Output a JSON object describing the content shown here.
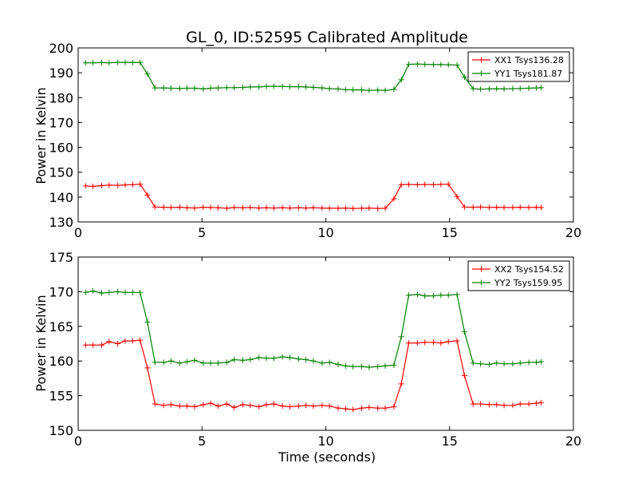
{
  "chart_data": [
    {
      "type": "line",
      "title": "GL_0, ID:52595 Calibrated Amplitude",
      "xlabel": "",
      "ylabel": "Power in Kelvin",
      "xlim": [
        0,
        20
      ],
      "ylim": [
        130,
        200
      ],
      "xticks": [
        "0",
        "5",
        "10",
        "15",
        "20"
      ],
      "yticks": [
        "130",
        "140",
        "150",
        "160",
        "170",
        "180",
        "190",
        "200"
      ],
      "grid": false,
      "legend_position": "top-right",
      "x": [
        0.3,
        0.6,
        0.95,
        1.25,
        1.6,
        1.9,
        2.2,
        2.5,
        2.8,
        3.1,
        3.45,
        3.75,
        4.1,
        4.4,
        4.7,
        5.05,
        5.35,
        5.65,
        6.0,
        6.3,
        6.65,
        6.95,
        7.3,
        7.6,
        7.9,
        8.25,
        8.55,
        8.9,
        9.2,
        9.5,
        9.85,
        10.15,
        10.5,
        10.8,
        11.1,
        11.45,
        11.75,
        12.1,
        12.4,
        12.75,
        13.05,
        13.35,
        13.7,
        14.0,
        14.35,
        14.65,
        14.95,
        15.3,
        15.6,
        15.95,
        16.25,
        16.6,
        16.9,
        17.2,
        17.55,
        17.85,
        18.2,
        18.5,
        18.7
      ],
      "series": [
        {
          "name": "XX1 Tsys136.28",
          "color": "#ff0000",
          "values": [
            144.5,
            144.3,
            144.6,
            144.8,
            144.7,
            144.9,
            145.0,
            145.2,
            140.8,
            136.0,
            135.9,
            135.8,
            135.9,
            135.7,
            135.6,
            135.9,
            135.8,
            135.7,
            135.5,
            135.8,
            135.7,
            135.8,
            135.6,
            135.7,
            135.6,
            135.7,
            135.6,
            135.7,
            135.6,
            135.7,
            135.6,
            135.5,
            135.5,
            135.6,
            135.4,
            135.5,
            135.6,
            135.4,
            135.5,
            139.3,
            145.0,
            145.1,
            145.0,
            145.1,
            145.0,
            145.1,
            145.2,
            140.2,
            136.0,
            135.9,
            136.0,
            135.8,
            135.9,
            135.8,
            135.8,
            135.9,
            135.8,
            135.9,
            135.8
          ]
        },
        {
          "name": "YY1 Tsys181.87",
          "color": "#008000",
          "values": [
            194.0,
            194.0,
            194.1,
            194.0,
            194.2,
            194.2,
            194.1,
            194.2,
            189.5,
            183.9,
            183.9,
            183.8,
            183.7,
            183.8,
            183.8,
            183.5,
            183.8,
            183.9,
            184.0,
            184.0,
            184.1,
            184.3,
            184.3,
            184.5,
            184.6,
            184.5,
            184.4,
            184.4,
            184.3,
            184.1,
            183.9,
            183.6,
            183.5,
            183.2,
            183.1,
            183.1,
            182.9,
            183.0,
            182.9,
            183.3,
            187.2,
            193.4,
            193.5,
            193.4,
            193.3,
            193.3,
            193.2,
            193.1,
            188.2,
            183.6,
            183.4,
            183.5,
            183.6,
            183.5,
            183.6,
            183.7,
            183.8,
            183.9,
            184.0
          ]
        }
      ]
    },
    {
      "type": "line",
      "title": "",
      "xlabel": "Time (seconds)",
      "ylabel": "Power in Kelvin",
      "xlim": [
        0,
        20
      ],
      "ylim": [
        150,
        175
      ],
      "xticks": [
        "0",
        "5",
        "10",
        "15",
        "20"
      ],
      "yticks": [
        "150",
        "155",
        "160",
        "165",
        "170",
        "175"
      ],
      "grid": false,
      "legend_position": "top-right",
      "x": [
        0.3,
        0.6,
        0.95,
        1.25,
        1.6,
        1.9,
        2.2,
        2.5,
        2.8,
        3.1,
        3.45,
        3.75,
        4.1,
        4.4,
        4.7,
        5.05,
        5.35,
        5.65,
        6.0,
        6.3,
        6.65,
        6.95,
        7.3,
        7.6,
        7.9,
        8.25,
        8.55,
        8.9,
        9.2,
        9.5,
        9.85,
        10.15,
        10.5,
        10.8,
        11.1,
        11.45,
        11.75,
        12.1,
        12.4,
        12.75,
        13.05,
        13.35,
        13.7,
        14.0,
        14.35,
        14.65,
        14.95,
        15.3,
        15.6,
        15.95,
        16.25,
        16.6,
        16.9,
        17.2,
        17.55,
        17.85,
        18.2,
        18.5,
        18.7
      ],
      "series": [
        {
          "name": "XX2 Tsys154.52",
          "color": "#ff0000",
          "values": [
            162.3,
            162.3,
            162.3,
            162.8,
            162.5,
            162.9,
            162.9,
            163.0,
            159.0,
            153.8,
            153.6,
            153.7,
            153.5,
            153.5,
            153.4,
            153.7,
            153.9,
            153.5,
            153.8,
            153.3,
            153.7,
            153.6,
            153.4,
            153.7,
            153.8,
            153.5,
            153.4,
            153.5,
            153.6,
            153.5,
            153.6,
            153.5,
            153.2,
            153.1,
            153.0,
            153.2,
            153.3,
            153.2,
            153.2,
            153.4,
            156.7,
            162.6,
            162.6,
            162.7,
            162.7,
            162.6,
            162.8,
            162.9,
            157.9,
            153.8,
            153.8,
            153.7,
            153.7,
            153.6,
            153.6,
            153.8,
            153.8,
            153.9,
            154.0
          ]
        },
        {
          "name": "YY2 Tsys159.95",
          "color": "#008000",
          "values": [
            169.9,
            170.1,
            169.8,
            169.9,
            170.0,
            169.9,
            169.9,
            169.9,
            165.6,
            159.8,
            159.8,
            160.0,
            159.7,
            159.9,
            160.1,
            159.7,
            159.7,
            159.7,
            159.8,
            160.2,
            160.1,
            160.2,
            160.5,
            160.4,
            160.4,
            160.6,
            160.5,
            160.3,
            160.2,
            160.0,
            159.7,
            159.8,
            159.5,
            159.3,
            159.2,
            159.2,
            159.1,
            159.2,
            159.3,
            159.4,
            163.5,
            169.5,
            169.6,
            169.4,
            169.4,
            169.5,
            169.5,
            169.6,
            164.2,
            159.7,
            159.6,
            159.5,
            159.7,
            159.6,
            159.6,
            159.7,
            159.8,
            159.8,
            159.9
          ]
        }
      ]
    }
  ]
}
